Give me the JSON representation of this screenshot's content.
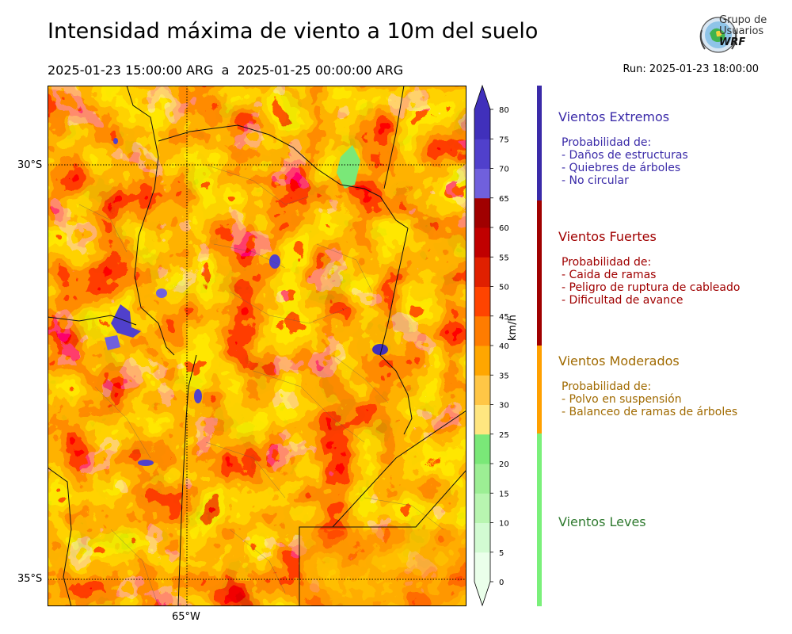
{
  "header": {
    "title": "Intensidad máxima de viento a 10m del suelo",
    "period": "2025-01-23 15:00:00 ARG  a  2025-01-25 00:00:00 ARG",
    "run": "Run: 2025-01-23 18:00:00"
  },
  "logo": {
    "line1": "Grupo de",
    "line2": "Usuarios",
    "line3": "WRF"
  },
  "map": {
    "lat_labels": [
      "30°S",
      "35°S"
    ],
    "lon_labels": [
      "65°W"
    ]
  },
  "colorbar": {
    "unit": "km/h",
    "ticks": [
      "0",
      "5",
      "10",
      "15",
      "20",
      "25",
      "30",
      "35",
      "40",
      "45",
      "50",
      "55",
      "60",
      "65",
      "70",
      "75",
      "80"
    ],
    "colors": [
      "#eaffea",
      "#d2fbd2",
      "#b8f5b0",
      "#9cee94",
      "#7ae878",
      "#ffe680",
      "#ffc646",
      "#ffa600",
      "#ff7c00",
      "#ff4400",
      "#e02000",
      "#c00000",
      "#a00000",
      "#7060dd",
      "#5040cc",
      "#4030bb"
    ]
  },
  "categories": [
    {
      "title": "Vientos Extremos",
      "color": "#3a2aa8",
      "lines": [
        "Probabilidad de:",
        "- Daños de estructuras",
        "- Quiebres de árboles",
        "- No circular"
      ]
    },
    {
      "title": "Vientos Fuertes",
      "color": "#a00000",
      "lines": [
        "Probabilidad de:",
        "- Caida de ramas",
        "- Peligro de ruptura de cableado",
        "- Dificultad de avance"
      ]
    },
    {
      "title": "Vientos Moderados",
      "color": "#a06a00",
      "lines": [
        "Probabilidad de:",
        "- Polvo en suspensión",
        "- Balanceo de ramas de árboles"
      ]
    },
    {
      "title": "Vientos Leves",
      "color": "#2f7a2f",
      "lines": []
    }
  ]
}
